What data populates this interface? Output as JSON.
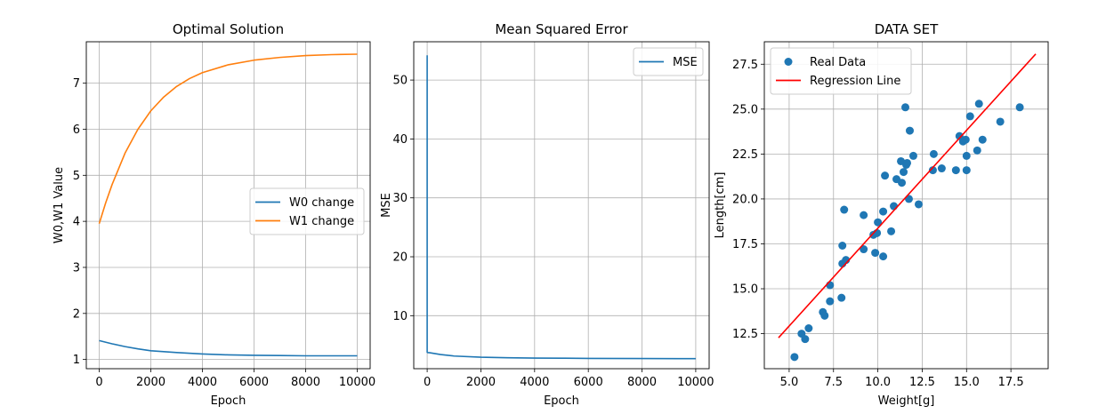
{
  "chart_data": [
    {
      "type": "line",
      "title": "Optimal Solution",
      "xlabel": "Epoch",
      "ylabel": "W0,W1 Value",
      "xlim": [
        -500,
        10500
      ],
      "ylim": [
        0.8,
        7.9
      ],
      "xticks": [
        0,
        2000,
        4000,
        6000,
        8000,
        10000
      ],
      "yticks": [
        1,
        2,
        3,
        4,
        5,
        6,
        7
      ],
      "xtick_labels": [
        "0",
        "2000",
        "4000",
        "6000",
        "8000",
        "10000"
      ],
      "ytick_labels": [
        "1",
        "2",
        "3",
        "4",
        "5",
        "6",
        "7"
      ],
      "grid": true,
      "legend": "center-right",
      "series": [
        {
          "name": "W0 change",
          "color": "#1f77b4",
          "x": [
            0,
            500,
            1000,
            1500,
            2000,
            3000,
            4000,
            5000,
            6000,
            7000,
            8000,
            9000,
            10000
          ],
          "y": [
            1.41,
            1.34,
            1.28,
            1.23,
            1.19,
            1.15,
            1.12,
            1.1,
            1.09,
            1.085,
            1.08,
            1.08,
            1.08
          ]
        },
        {
          "name": "W1 change",
          "color": "#ff7f0e",
          "x": [
            0,
            250,
            500,
            1000,
            1500,
            2000,
            2500,
            3000,
            3500,
            4000,
            5000,
            6000,
            7000,
            8000,
            9000,
            10000
          ],
          "y": [
            3.95,
            4.4,
            4.8,
            5.48,
            6.0,
            6.4,
            6.7,
            6.93,
            7.1,
            7.23,
            7.4,
            7.5,
            7.56,
            7.6,
            7.62,
            7.63
          ]
        }
      ]
    },
    {
      "type": "line",
      "title": "Mean Squared Error",
      "xlabel": "Epoch",
      "ylabel": "MSE",
      "xlim": [
        -500,
        10500
      ],
      "ylim": [
        1.0,
        56.5
      ],
      "xticks": [
        0,
        2000,
        4000,
        6000,
        8000,
        10000
      ],
      "yticks": [
        10,
        20,
        30,
        40,
        50
      ],
      "xtick_labels": [
        "0",
        "2000",
        "4000",
        "6000",
        "8000",
        "10000"
      ],
      "ytick_labels": [
        "10",
        "20",
        "30",
        "40",
        "50"
      ],
      "grid": true,
      "legend": "top-right",
      "series": [
        {
          "name": "MSE",
          "color": "#1f77b4",
          "x": [
            0,
            0,
            10,
            100,
            500,
            1000,
            2000,
            3000,
            4000,
            5000,
            6000,
            8000,
            10000
          ],
          "y": [
            54.2,
            3.8,
            3.75,
            3.7,
            3.4,
            3.15,
            2.95,
            2.85,
            2.8,
            2.78,
            2.75,
            2.72,
            2.7
          ]
        }
      ]
    },
    {
      "type": "scatter",
      "title": "DATA SET",
      "xlabel": "Weight[g]",
      "ylabel": "Length[cm]",
      "xlim": [
        3.6,
        19.6
      ],
      "ylim": [
        10.55,
        28.75
      ],
      "xticks": [
        5.0,
        7.5,
        10.0,
        12.5,
        15.0,
        17.5
      ],
      "yticks": [
        12.5,
        15.0,
        17.5,
        20.0,
        22.5,
        25.0,
        27.5
      ],
      "xtick_labels": [
        "5.0",
        "7.5",
        "10.0",
        "12.5",
        "15.0",
        "17.5"
      ],
      "ytick_labels": [
        "12.5",
        "15.0",
        "17.5",
        "20.0",
        "22.5",
        "25.0",
        "27.5"
      ],
      "grid": true,
      "legend": "top-left",
      "series": [
        {
          "name": "Real Data",
          "kind": "scatter",
          "color": "#1f77b4",
          "x": [
            5.3,
            5.7,
            5.9,
            6.1,
            6.9,
            7.0,
            7.3,
            7.3,
            7.95,
            8.0,
            8.0,
            8.1,
            8.2,
            9.2,
            9.2,
            9.75,
            9.85,
            9.95,
            10.0,
            10.3,
            10.3,
            10.4,
            10.75,
            10.9,
            11.05,
            11.3,
            11.35,
            11.45,
            11.55,
            11.6,
            11.65,
            11.75,
            11.8,
            12.0,
            12.3,
            13.1,
            13.15,
            13.6,
            14.4,
            14.6,
            14.8,
            14.95,
            15.0,
            15.0,
            15.2,
            15.6,
            15.7,
            15.9,
            16.9,
            18.0
          ],
          "y": [
            11.2,
            12.5,
            12.2,
            12.8,
            13.7,
            13.5,
            14.3,
            15.2,
            14.5,
            16.4,
            17.4,
            19.4,
            16.6,
            17.2,
            19.1,
            18.0,
            17.0,
            18.1,
            18.7,
            16.8,
            19.3,
            21.3,
            18.2,
            19.6,
            21.1,
            22.1,
            20.9,
            21.5,
            25.1,
            21.9,
            22.0,
            20.0,
            23.8,
            22.4,
            19.7,
            21.6,
            22.5,
            21.7,
            21.6,
            23.5,
            23.2,
            23.3,
            22.4,
            21.6,
            24.6,
            22.7,
            25.3,
            23.3,
            24.3,
            25.1
          ]
        },
        {
          "name": "Regression Line",
          "kind": "line",
          "color": "#ff0000",
          "x": [
            4.4,
            18.9
          ],
          "y": [
            12.27,
            28.07
          ]
        }
      ]
    }
  ]
}
